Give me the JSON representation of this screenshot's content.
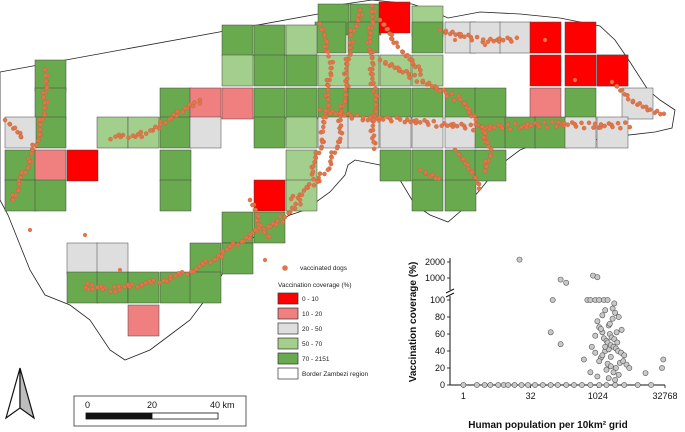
{
  "legend": {
    "dots_label": "vaccinated dogs",
    "title": "Vaccination coverage (%)",
    "classes": [
      {
        "label": "0 - 10",
        "color": "#ff0000"
      },
      {
        "label": "10 - 20",
        "color": "#f08080"
      },
      {
        "label": "20 - 50",
        "color": "#dedede"
      },
      {
        "label": "50 - 70",
        "color": "#a3cf8c"
      },
      {
        "label": "70 - 2151",
        "color": "#6aaa4f"
      }
    ],
    "border_label": "Border Zambezi region",
    "border_color": "#ffffff",
    "dot_color": "#e2764a"
  },
  "scale_bar": {
    "labels": [
      "0",
      "20",
      "40 km"
    ]
  },
  "north_arrow": {
    "icon": "north-arrow-icon"
  },
  "chart_data": {
    "type": "scatter",
    "xlabel": "Human population per 10km² grid",
    "ylabel": "Vaccination coverage (%)",
    "x_scale": "log2",
    "x_ticks": [
      "1",
      "32",
      "1024",
      "32768"
    ],
    "y_ticks_lower": [
      "0",
      "20",
      "40",
      "60",
      "80",
      "100"
    ],
    "y_ticks_upper": [
      "1000",
      "2000"
    ],
    "point_color": "#c8c8c8",
    "points": [
      [
        18,
        2151
      ],
      [
        150,
        900
      ],
      [
        200,
        700
      ],
      [
        800,
        1150
      ],
      [
        1000,
        1050
      ],
      [
        100,
        100
      ],
      [
        600,
        100
      ],
      [
        700,
        100
      ],
      [
        900,
        100
      ],
      [
        1100,
        100
      ],
      [
        1400,
        100
      ],
      [
        1700,
        100
      ],
      [
        2400,
        96
      ],
      [
        2200,
        90
      ],
      [
        90,
        62
      ],
      [
        150,
        48
      ],
      [
        750,
        45
      ],
      [
        500,
        30
      ],
      [
        900,
        38
      ],
      [
        1200,
        32
      ],
      [
        1500,
        40
      ],
      [
        1800,
        42
      ],
      [
        1000,
        75
      ],
      [
        1100,
        68
      ],
      [
        1300,
        62
      ],
      [
        1400,
        55
      ],
      [
        1600,
        52
      ],
      [
        1700,
        50
      ],
      [
        2000,
        47
      ],
      [
        2300,
        45
      ],
      [
        2600,
        43
      ],
      [
        2900,
        40
      ],
      [
        3400,
        38
      ],
      [
        4000,
        35
      ],
      [
        900,
        58
      ],
      [
        1200,
        66
      ],
      [
        1800,
        70
      ],
      [
        2200,
        78
      ],
      [
        2500,
        85
      ],
      [
        3000,
        80
      ],
      [
        2700,
        62
      ],
      [
        1900,
        60
      ],
      [
        2100,
        56
      ],
      [
        2400,
        54
      ],
      [
        2800,
        50
      ],
      [
        1500,
        45
      ],
      [
        1300,
        35
      ],
      [
        1100,
        28
      ],
      [
        1700,
        25
      ],
      [
        2000,
        22
      ],
      [
        2600,
        20
      ],
      [
        3200,
        26
      ],
      [
        3800,
        28
      ],
      [
        4500,
        24
      ],
      [
        5200,
        20
      ],
      [
        1600,
        18
      ],
      [
        700,
        15
      ],
      [
        2300,
        15
      ],
      [
        3000,
        12
      ],
      [
        1000,
        10
      ],
      [
        1800,
        8
      ],
      [
        2500,
        6
      ],
      [
        12000,
        14
      ],
      [
        30000,
        30
      ],
      [
        28000,
        20
      ],
      [
        1500,
        88
      ],
      [
        1900,
        72
      ],
      [
        3500,
        65
      ],
      [
        2000,
        33
      ],
      [
        1300,
        82
      ],
      [
        1,
        0
      ],
      [
        2,
        0
      ],
      [
        3,
        0
      ],
      [
        4,
        0
      ],
      [
        6,
        0
      ],
      [
        8,
        0
      ],
      [
        10,
        0
      ],
      [
        14,
        0
      ],
      [
        20,
        0
      ],
      [
        28,
        0
      ],
      [
        40,
        0
      ],
      [
        60,
        0
      ],
      [
        90,
        0
      ],
      [
        130,
        0
      ],
      [
        200,
        0
      ],
      [
        300,
        0
      ],
      [
        450,
        0
      ],
      [
        700,
        0
      ],
      [
        1100,
        0
      ],
      [
        1600,
        0
      ],
      [
        2500,
        0
      ],
      [
        4000,
        0
      ],
      [
        8000,
        0
      ],
      [
        16000,
        0
      ]
    ]
  }
}
